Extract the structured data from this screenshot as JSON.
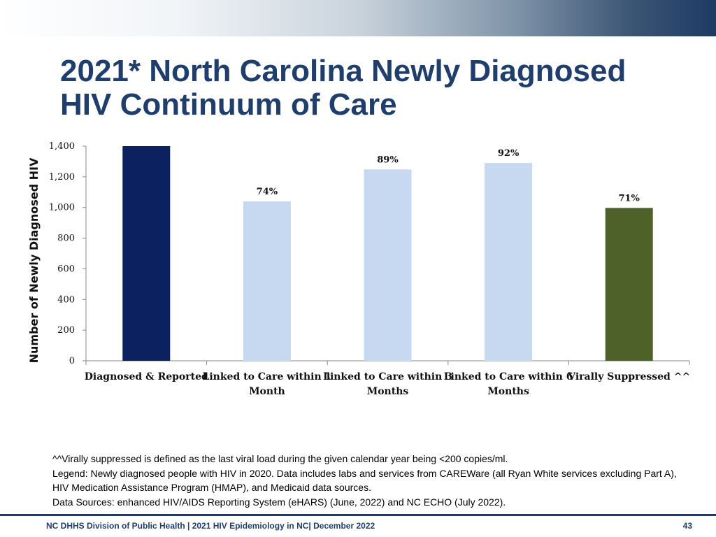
{
  "slide": {
    "title_line1": "2021* North Carolina Newly Diagnosed",
    "title_line2": "HIV Continuum of Care",
    "notes": [
      "^^Virally suppressed is defined as the last viral load during the given calendar year  being <200 copies/ml.",
      "Legend: Newly diagnosed people with HIV in 2020. Data includes labs and services from CAREWare (all Ryan White services excluding Part A), HIV Medication Assistance Program (HMAP), and Medicaid data sources.",
      "Data Sources: enhanced HIV/AIDS Reporting System (eHARS) (June, 2022) and NC ECHO (July 2022)."
    ],
    "footer": "NC DHHS Division of Public Health | 2021 HIV Epidemiology in NC| December 2022",
    "page_number": "43"
  },
  "chart_data": {
    "type": "bar",
    "title": "",
    "xlabel": "",
    "ylabel": "Number of Newly Diagnosed HIV",
    "ylim": [
      0,
      1400
    ],
    "yticks": [
      0,
      200,
      400,
      600,
      800,
      1000,
      1200,
      1400
    ],
    "ytick_labels": [
      "0",
      "200",
      "400",
      "600",
      "800",
      "1,000",
      "1,200",
      "1,400"
    ],
    "categories": [
      [
        "Diagnosed & Reported"
      ],
      [
        "Linked to Care within 1",
        "Month"
      ],
      [
        "Linked to Care within 3",
        "Months"
      ],
      [
        "Linked to Care within 6",
        "Months"
      ],
      [
        "Virally Suppressed ^^"
      ]
    ],
    "values": [
      1400,
      1040,
      1248,
      1290,
      997
    ],
    "data_labels": [
      "",
      "74%",
      "89%",
      "92%",
      "71%"
    ],
    "colors": [
      "#0c2160",
      "#c7d9f0",
      "#c7d9f0",
      "#c7d9f0",
      "#4e6128"
    ],
    "grid": false,
    "legend": "none"
  }
}
